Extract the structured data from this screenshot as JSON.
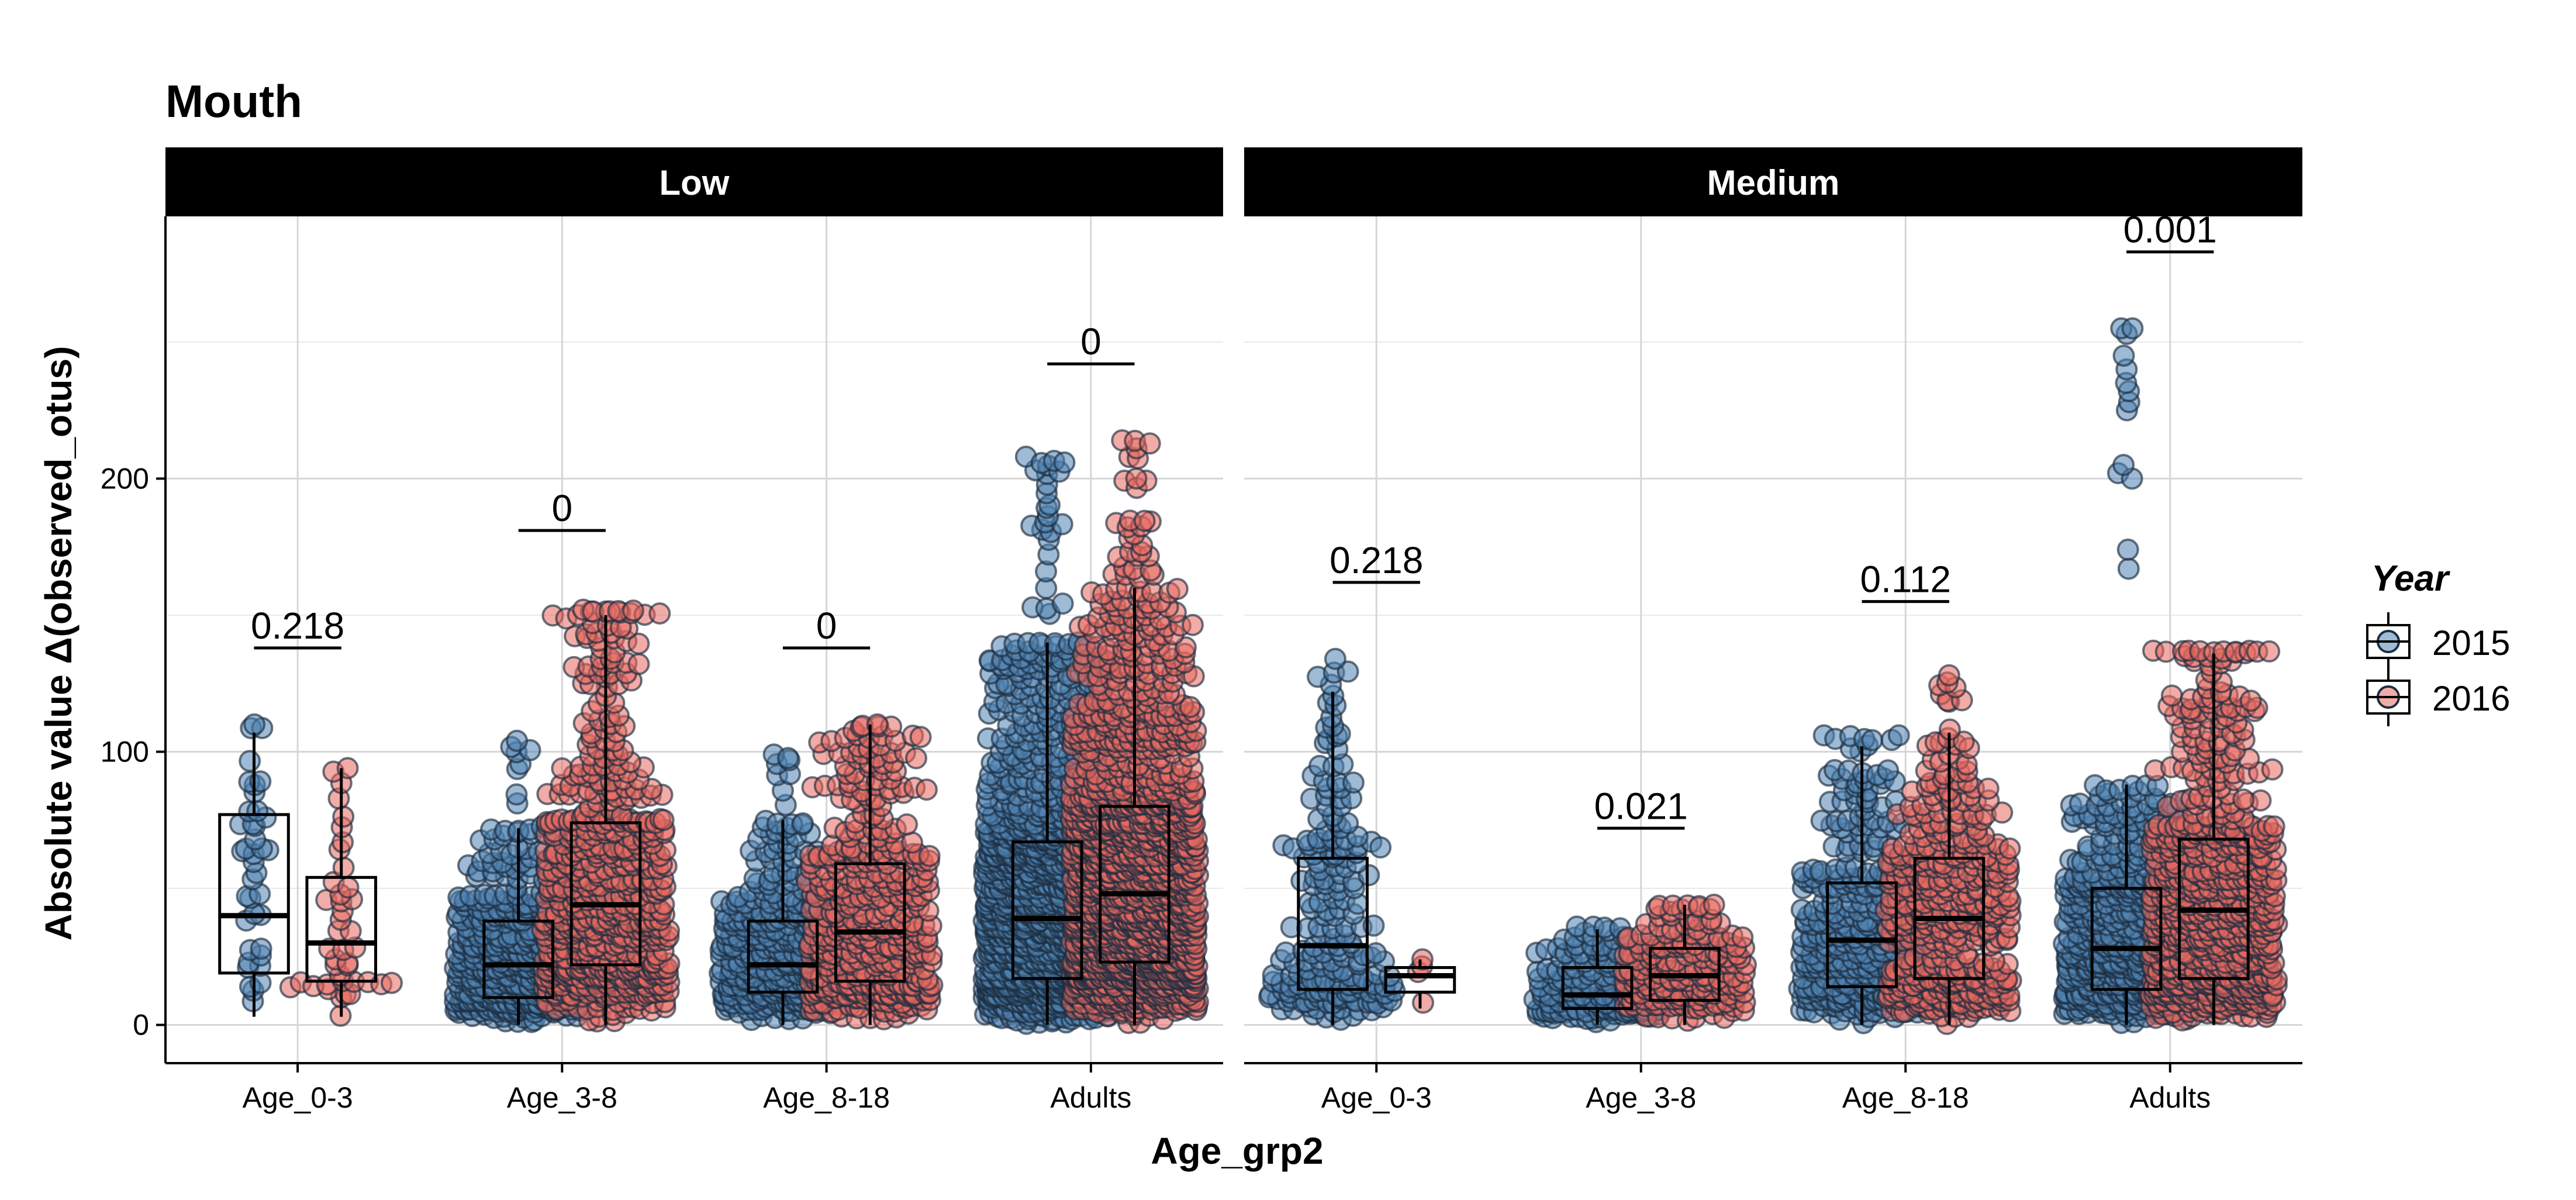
{
  "chart_data": {
    "type": "boxplot-beeswarm",
    "title": "Mouth",
    "xlabel": "Age_grp2",
    "ylabel": "Absolute value Δ(observed_otus)",
    "ylim": [
      -14,
      296
    ],
    "yticks": [
      0,
      100,
      200
    ],
    "categories": [
      "Age_0-3",
      "Age_3-8",
      "Age_8-18",
      "Adults"
    ],
    "grid": true,
    "legend": {
      "title": "Year",
      "position": "right",
      "entries": [
        {
          "name": "2015",
          "color": "#4f81b0"
        },
        {
          "name": "2016",
          "color": "#e8685f"
        }
      ]
    },
    "series_colors": {
      "2015": "#4f81b0",
      "2016": "#e8685f"
    },
    "facets": [
      {
        "name": "Low",
        "groups": [
          {
            "category": "Age_0-3",
            "pvalue": "0.218",
            "pvalue_y": 138,
            "boxes": [
              {
                "series": "2015",
                "q1": 19,
                "median": 40,
                "q3": 77,
                "whisker_low": 3,
                "whisker_high": 107,
                "max_point": 110,
                "n": 36
              },
              {
                "series": "2016",
                "q1": 16,
                "median": 30,
                "q3": 54,
                "whisker_low": 3,
                "whisker_high": 94,
                "max_point": 94,
                "n": 40
              }
            ]
          },
          {
            "category": "Age_3-8",
            "pvalue": "0",
            "pvalue_y": 181,
            "boxes": [
              {
                "series": "2015",
                "q1": 10,
                "median": 22,
                "q3": 38,
                "whisker_low": 0,
                "whisker_high": 72,
                "max_point": 104,
                "n": 420
              },
              {
                "series": "2016",
                "q1": 22,
                "median": 44,
                "q3": 74,
                "whisker_low": 0,
                "whisker_high": 150,
                "max_point": 152,
                "n": 560
              }
            ]
          },
          {
            "category": "Age_8-18",
            "pvalue": "0",
            "pvalue_y": 138,
            "boxes": [
              {
                "series": "2015",
                "q1": 12,
                "median": 22,
                "q3": 38,
                "whisker_low": 0,
                "whisker_high": 75,
                "max_point": 99,
                "n": 330
              },
              {
                "series": "2016",
                "q1": 16,
                "median": 34,
                "q3": 59,
                "whisker_low": 0,
                "whisker_high": 110,
                "max_point": 110,
                "n": 400
              }
            ]
          },
          {
            "category": "Adults",
            "pvalue": "0",
            "pvalue_y": 242,
            "boxes": [
              {
                "series": "2015",
                "q1": 17,
                "median": 39,
                "q3": 67,
                "whisker_low": 0,
                "whisker_high": 140,
                "max_point": 208,
                "n": 1300
              },
              {
                "series": "2016",
                "q1": 23,
                "median": 48,
                "q3": 80,
                "whisker_low": 0,
                "whisker_high": 160,
                "max_point": 214,
                "n": 1500
              }
            ]
          }
        ]
      },
      {
        "name": "Medium",
        "groups": [
          {
            "category": "Age_0-3",
            "pvalue": "0.218",
            "pvalue_y": 162,
            "boxes": [
              {
                "series": "2015",
                "q1": 13,
                "median": 29,
                "q3": 61,
                "whisker_low": 0,
                "whisker_high": 122,
                "max_point": 134,
                "n": 190
              },
              {
                "series": "2016",
                "q1": 12,
                "median": 18,
                "q3": 21,
                "whisker_low": 6,
                "whisker_high": 24,
                "max_point": 24,
                "n": 3
              }
            ]
          },
          {
            "category": "Age_3-8",
            "pvalue": "0.021",
            "pvalue_y": 72,
            "boxes": [
              {
                "series": "2015",
                "q1": 6,
                "median": 11,
                "q3": 21,
                "whisker_low": 0,
                "whisker_high": 35,
                "max_point": 36,
                "n": 150
              },
              {
                "series": "2016",
                "q1": 9,
                "median": 18,
                "q3": 28,
                "whisker_low": 0,
                "whisker_high": 44,
                "max_point": 44,
                "n": 170
              }
            ]
          },
          {
            "category": "Age_8-18",
            "pvalue": "0.112",
            "pvalue_y": 155,
            "boxes": [
              {
                "series": "2015",
                "q1": 14,
                "median": 31,
                "q3": 52,
                "whisker_low": 0,
                "whisker_high": 102,
                "max_point": 106,
                "n": 330
              },
              {
                "series": "2016",
                "q1": 17,
                "median": 39,
                "q3": 61,
                "whisker_low": 0,
                "whisker_high": 107,
                "max_point": 128,
                "n": 380
              }
            ]
          },
          {
            "category": "Adults",
            "pvalue": "0.001",
            "pvalue_y": 283,
            "boxes": [
              {
                "series": "2015",
                "q1": 13,
                "median": 28,
                "q3": 50,
                "whisker_low": 0,
                "whisker_high": 88,
                "max_point": 255,
                "n": 500,
                "outliers": [
                  255,
                  253,
                  245,
                  240,
                  235,
                  232,
                  228,
                  225,
                  205,
                  202,
                  200,
                  174,
                  167
                ]
              },
              {
                "series": "2016",
                "q1": 17,
                "median": 42,
                "q3": 68,
                "whisker_low": 0,
                "whisker_high": 136,
                "max_point": 137,
                "n": 620
              }
            ]
          }
        ]
      }
    ]
  }
}
